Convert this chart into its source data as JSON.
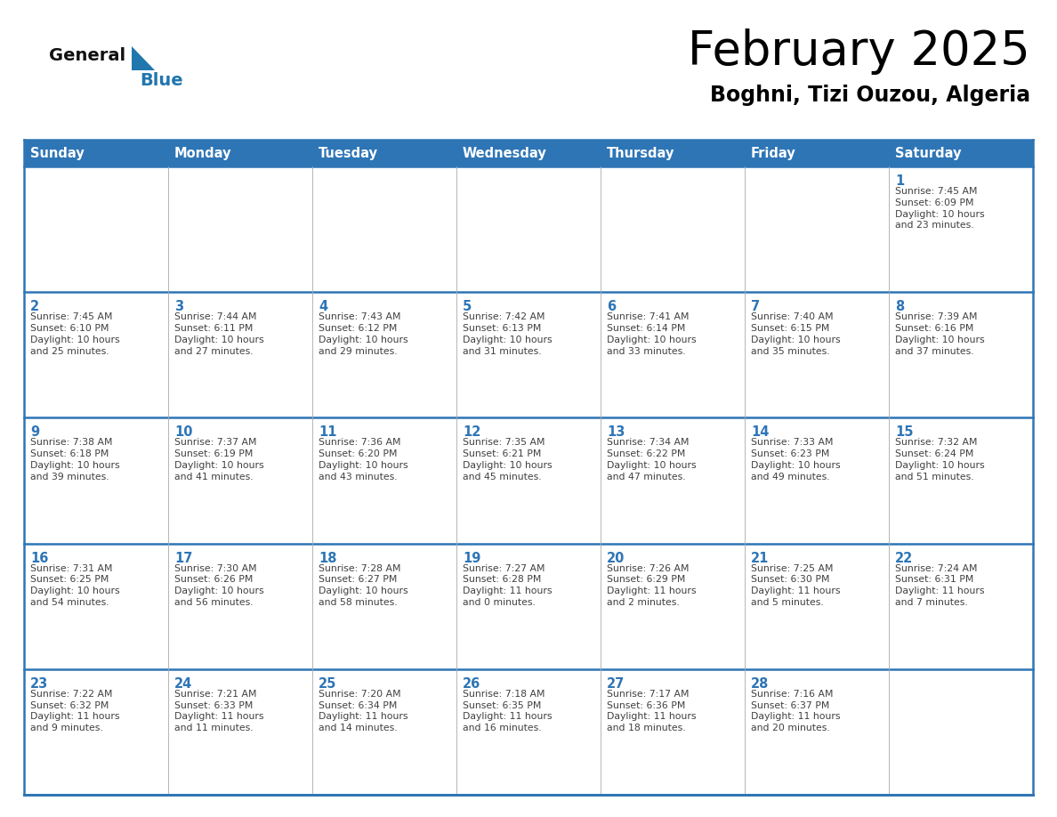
{
  "title": "February 2025",
  "subtitle": "Boghni, Tizi Ouzou, Algeria",
  "days_of_week": [
    "Sunday",
    "Monday",
    "Tuesday",
    "Wednesday",
    "Thursday",
    "Friday",
    "Saturday"
  ],
  "header_bg": "#2E75B6",
  "header_text": "#FFFFFF",
  "cell_bg": "#FFFFFF",
  "row_line_color": "#2E75B6",
  "col_line_color": "#AAAAAA",
  "day_num_color": "#2E75B6",
  "text_color": "#404040",
  "title_color": "#000000",
  "subtitle_color": "#000000",
  "logo_general_color": "#1a1a1a",
  "logo_blue_color": "#2176AE",
  "weeks": [
    [
      {
        "day": null,
        "info": null
      },
      {
        "day": null,
        "info": null
      },
      {
        "day": null,
        "info": null
      },
      {
        "day": null,
        "info": null
      },
      {
        "day": null,
        "info": null
      },
      {
        "day": null,
        "info": null
      },
      {
        "day": 1,
        "info": "Sunrise: 7:45 AM\nSunset: 6:09 PM\nDaylight: 10 hours\nand 23 minutes."
      }
    ],
    [
      {
        "day": 2,
        "info": "Sunrise: 7:45 AM\nSunset: 6:10 PM\nDaylight: 10 hours\nand 25 minutes."
      },
      {
        "day": 3,
        "info": "Sunrise: 7:44 AM\nSunset: 6:11 PM\nDaylight: 10 hours\nand 27 minutes."
      },
      {
        "day": 4,
        "info": "Sunrise: 7:43 AM\nSunset: 6:12 PM\nDaylight: 10 hours\nand 29 minutes."
      },
      {
        "day": 5,
        "info": "Sunrise: 7:42 AM\nSunset: 6:13 PM\nDaylight: 10 hours\nand 31 minutes."
      },
      {
        "day": 6,
        "info": "Sunrise: 7:41 AM\nSunset: 6:14 PM\nDaylight: 10 hours\nand 33 minutes."
      },
      {
        "day": 7,
        "info": "Sunrise: 7:40 AM\nSunset: 6:15 PM\nDaylight: 10 hours\nand 35 minutes."
      },
      {
        "day": 8,
        "info": "Sunrise: 7:39 AM\nSunset: 6:16 PM\nDaylight: 10 hours\nand 37 minutes."
      }
    ],
    [
      {
        "day": 9,
        "info": "Sunrise: 7:38 AM\nSunset: 6:18 PM\nDaylight: 10 hours\nand 39 minutes."
      },
      {
        "day": 10,
        "info": "Sunrise: 7:37 AM\nSunset: 6:19 PM\nDaylight: 10 hours\nand 41 minutes."
      },
      {
        "day": 11,
        "info": "Sunrise: 7:36 AM\nSunset: 6:20 PM\nDaylight: 10 hours\nand 43 minutes."
      },
      {
        "day": 12,
        "info": "Sunrise: 7:35 AM\nSunset: 6:21 PM\nDaylight: 10 hours\nand 45 minutes."
      },
      {
        "day": 13,
        "info": "Sunrise: 7:34 AM\nSunset: 6:22 PM\nDaylight: 10 hours\nand 47 minutes."
      },
      {
        "day": 14,
        "info": "Sunrise: 7:33 AM\nSunset: 6:23 PM\nDaylight: 10 hours\nand 49 minutes."
      },
      {
        "day": 15,
        "info": "Sunrise: 7:32 AM\nSunset: 6:24 PM\nDaylight: 10 hours\nand 51 minutes."
      }
    ],
    [
      {
        "day": 16,
        "info": "Sunrise: 7:31 AM\nSunset: 6:25 PM\nDaylight: 10 hours\nand 54 minutes."
      },
      {
        "day": 17,
        "info": "Sunrise: 7:30 AM\nSunset: 6:26 PM\nDaylight: 10 hours\nand 56 minutes."
      },
      {
        "day": 18,
        "info": "Sunrise: 7:28 AM\nSunset: 6:27 PM\nDaylight: 10 hours\nand 58 minutes."
      },
      {
        "day": 19,
        "info": "Sunrise: 7:27 AM\nSunset: 6:28 PM\nDaylight: 11 hours\nand 0 minutes."
      },
      {
        "day": 20,
        "info": "Sunrise: 7:26 AM\nSunset: 6:29 PM\nDaylight: 11 hours\nand 2 minutes."
      },
      {
        "day": 21,
        "info": "Sunrise: 7:25 AM\nSunset: 6:30 PM\nDaylight: 11 hours\nand 5 minutes."
      },
      {
        "day": 22,
        "info": "Sunrise: 7:24 AM\nSunset: 6:31 PM\nDaylight: 11 hours\nand 7 minutes."
      }
    ],
    [
      {
        "day": 23,
        "info": "Sunrise: 7:22 AM\nSunset: 6:32 PM\nDaylight: 11 hours\nand 9 minutes."
      },
      {
        "day": 24,
        "info": "Sunrise: 7:21 AM\nSunset: 6:33 PM\nDaylight: 11 hours\nand 11 minutes."
      },
      {
        "day": 25,
        "info": "Sunrise: 7:20 AM\nSunset: 6:34 PM\nDaylight: 11 hours\nand 14 minutes."
      },
      {
        "day": 26,
        "info": "Sunrise: 7:18 AM\nSunset: 6:35 PM\nDaylight: 11 hours\nand 16 minutes."
      },
      {
        "day": 27,
        "info": "Sunrise: 7:17 AM\nSunset: 6:36 PM\nDaylight: 11 hours\nand 18 minutes."
      },
      {
        "day": 28,
        "info": "Sunrise: 7:16 AM\nSunset: 6:37 PM\nDaylight: 11 hours\nand 20 minutes."
      },
      {
        "day": null,
        "info": null
      }
    ]
  ]
}
